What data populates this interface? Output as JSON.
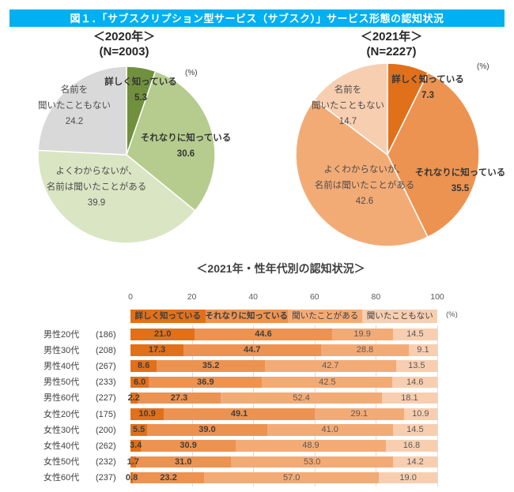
{
  "page_title": "図１．「サブスクリプション型サービス（サブスク）」サービス形態の認知状況",
  "colors": {
    "header_bg": "#00B0F0",
    "header_text": "#FFFFFF",
    "grid": "#DCDCDC",
    "green_palette": [
      "#70903E",
      "#B5CC8E",
      "#DAE5C3",
      "#D9D9D9"
    ],
    "orange_palette": [
      "#E1701B",
      "#EC9351",
      "#F3AB76",
      "#F8CEB0"
    ]
  },
  "chart_data": [
    {
      "type": "pie",
      "title": "＜2020年＞",
      "subtitle": "(N=2003)",
      "unit": "(%)",
      "order": "clockwise-from-top",
      "slices": [
        {
          "label": "詳しく知っている",
          "label_lines": [
            "詳しく知っている"
          ],
          "value": 5.3,
          "color": "#70903E"
        },
        {
          "label": "それなりに知っている",
          "label_lines": [
            "それなりに知っている"
          ],
          "value": 30.6,
          "color": "#B5CC8E"
        },
        {
          "label": "よくわからないが、名前は聞いたことがある",
          "label_lines": [
            "よくわからないが、",
            "名前は聞いたことがある"
          ],
          "value": 39.9,
          "color": "#DAE5C3"
        },
        {
          "label": "名前を聞いたこともない",
          "label_lines": [
            "名前を",
            "聞いたこともない"
          ],
          "value": 24.2,
          "color": "#D9D9D9"
        }
      ]
    },
    {
      "type": "pie",
      "title": "＜2021年＞",
      "subtitle": "(N=2227)",
      "unit": "(%)",
      "order": "clockwise-from-top",
      "slices": [
        {
          "label": "詳しく知っている",
          "label_lines": [
            "詳しく知っている"
          ],
          "value": 7.3,
          "color": "#E1701B"
        },
        {
          "label": "それなりに知っている",
          "label_lines": [
            "それなりに知っている"
          ],
          "value": 35.5,
          "color": "#EC9351"
        },
        {
          "label": "よくわからないが、名前は聞いたことがある",
          "label_lines": [
            "よくわからないが、",
            "名前は聞いたことがある"
          ],
          "value": 42.6,
          "color": "#F3AB76"
        },
        {
          "label": "名前を聞いたこともない",
          "label_lines": [
            "名前を",
            "聞いたこともない"
          ],
          "value": 14.7,
          "color": "#F8CEB0"
        }
      ]
    },
    {
      "type": "stacked-bar-horizontal",
      "title": "＜2021年・性年代別の認知状況＞",
      "unit": "(%)",
      "xlim": [
        0,
        100
      ],
      "xticks": [
        0,
        20,
        40,
        60,
        80,
        100
      ],
      "grid": true,
      "legend_position": "top-strip",
      "series": [
        {
          "name": "詳しく知っている",
          "color": "#E1701B"
        },
        {
          "name": "それなりに知っている",
          "color": "#EC9351"
        },
        {
          "name": "聞いたことがある",
          "color": "#F3AB76"
        },
        {
          "name": "聞いたこともない",
          "color": "#F8CEB0"
        }
      ],
      "rows": [
        {
          "label": "男性20代",
          "n": "(186)",
          "values": [
            21.0,
            44.6,
            19.9,
            14.5
          ]
        },
        {
          "label": "男性30代",
          "n": "(208)",
          "values": [
            17.3,
            44.7,
            28.8,
            9.1
          ]
        },
        {
          "label": "男性40代",
          "n": "(267)",
          "values": [
            8.6,
            35.2,
            42.7,
            13.5
          ]
        },
        {
          "label": "男性50代",
          "n": "(233)",
          "values": [
            6.0,
            36.9,
            42.5,
            14.6
          ]
        },
        {
          "label": "男性60代",
          "n": "(227)",
          "values": [
            2.2,
            27.3,
            52.4,
            18.1
          ]
        },
        {
          "label": "女性20代",
          "n": "(175)",
          "values": [
            10.9,
            49.1,
            29.1,
            10.9
          ]
        },
        {
          "label": "女性30代",
          "n": "(200)",
          "values": [
            5.5,
            39.0,
            41.0,
            14.5
          ]
        },
        {
          "label": "女性40代",
          "n": "(262)",
          "values": [
            3.4,
            30.9,
            48.9,
            16.8
          ]
        },
        {
          "label": "女性50代",
          "n": "(232)",
          "values": [
            1.7,
            31.0,
            53.0,
            14.2
          ]
        },
        {
          "label": "女性60代",
          "n": "(237)",
          "values": [
            0.8,
            23.2,
            57.0,
            19.0
          ]
        }
      ]
    }
  ]
}
